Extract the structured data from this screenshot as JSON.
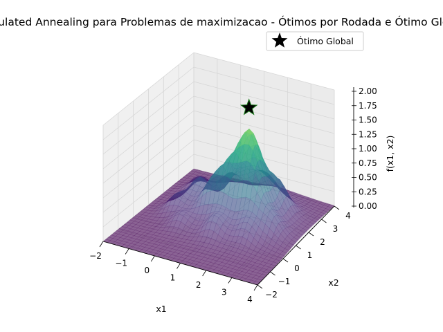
{
  "chart_data": {
    "type": "surface3d",
    "title": "Simulated Annealing para Problemas de maximizacao - Ótimos por Rodada e Ótimo Global",
    "xlabel": "x1",
    "ylabel": "x2",
    "zlabel": "f(x1, x2)",
    "xlim": [
      -2,
      4
    ],
    "ylim": [
      -2,
      4
    ],
    "zlim": [
      0,
      2
    ],
    "x_ticks": [
      "−2",
      "−1",
      "0",
      "1",
      "2",
      "3",
      "4"
    ],
    "y_ticks": [
      "−2",
      "−1",
      "0",
      "1",
      "2",
      "3",
      "4"
    ],
    "z_ticks": [
      "0.00",
      "0.25",
      "0.50",
      "0.75",
      "1.00",
      "1.25",
      "1.50",
      "1.75",
      "2.00"
    ],
    "colormap": "viridis",
    "surface_alpha": 0.6,
    "grid": true,
    "global_optimum": {
      "x1": 1.7,
      "x2": 1.7,
      "f": 2.0,
      "marker": "star",
      "color": "#000000",
      "label": "Ótimo Global"
    },
    "legend": {
      "position": "top-right",
      "entries": [
        "Ótimo Global"
      ]
    }
  }
}
